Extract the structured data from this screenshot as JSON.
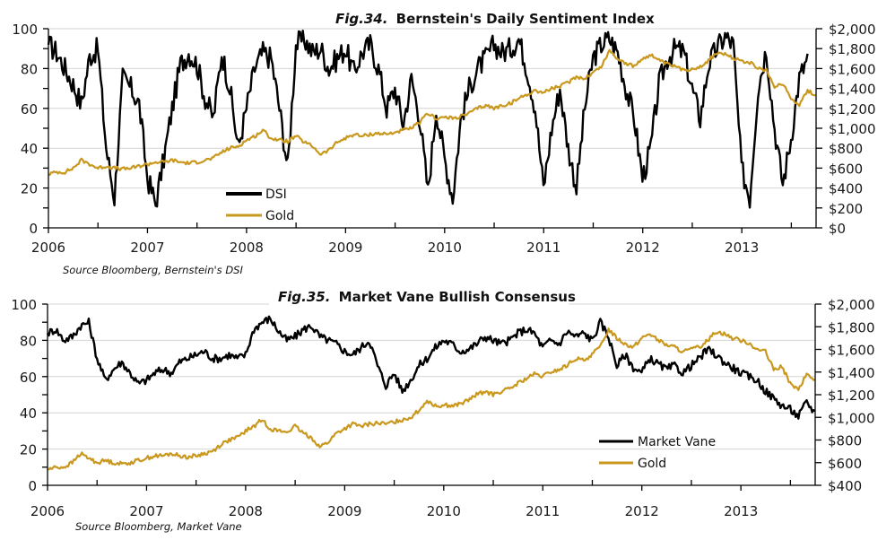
{
  "colors": {
    "sentiment": "#000000",
    "gold": "#C9981E",
    "grid": "#d4d4d4"
  },
  "chart_data": [
    {
      "type": "line",
      "title_prefix": "Fig.34.",
      "title": "Bernstein's Daily Sentiment Index",
      "source": "Source Bloomberg, Bernstein's DSI",
      "x_ticks": [
        "2006",
        "2007",
        "2008",
        "2009",
        "2010",
        "2011",
        "2012",
        "2013"
      ],
      "x_range": [
        2006.0,
        2013.75
      ],
      "y_left": {
        "range": [
          0,
          100
        ],
        "ticks": [
          0,
          20,
          40,
          60,
          80,
          100
        ],
        "labels": [
          "0",
          "20",
          "40",
          "60",
          "80",
          "100"
        ]
      },
      "y_right": {
        "range": [
          0,
          2000
        ],
        "ticks": [
          0,
          200,
          400,
          600,
          800,
          1000,
          1200,
          1400,
          1600,
          1800,
          2000
        ],
        "labels": [
          "$0",
          "$200",
          "$400",
          "$600",
          "$800",
          "$1,000",
          "$1,200",
          "$1,400",
          "$1,600",
          "$1,800",
          "$2,000"
        ]
      },
      "grid": true,
      "legend": {
        "position": "bottom-left-center",
        "entries": [
          "DSI",
          "Gold"
        ]
      },
      "series": [
        {
          "name": "DSI",
          "axis": "left",
          "color": "#000000",
          "x_start": 2006.0,
          "x_step": 0.0833,
          "values": [
            92,
            88,
            80,
            72,
            62,
            86,
            90,
            40,
            15,
            75,
            70,
            62,
            25,
            12,
            35,
            60,
            82,
            88,
            82,
            65,
            55,
            88,
            70,
            40,
            60,
            80,
            88,
            85,
            60,
            30,
            92,
            95,
            88,
            90,
            80,
            85,
            90,
            78,
            88,
            92,
            80,
            60,
            70,
            52,
            75,
            55,
            18,
            60,
            35,
            15,
            55,
            70,
            80,
            85,
            92,
            88,
            90,
            95,
            80,
            60,
            20,
            50,
            70,
            40,
            20,
            60,
            85,
            92,
            95,
            88,
            70,
            55,
            25,
            40,
            72,
            85,
            90,
            88,
            70,
            55,
            82,
            90,
            96,
            92,
            30,
            15,
            70,
            90,
            50,
            22,
            45,
            75,
            85
          ],
          "note": "approximate monthly readings"
        },
        {
          "name": "Gold",
          "axis": "right",
          "color": "#C9981E",
          "x_start": 2006.0,
          "x_step": 0.0833,
          "values": [
            540,
            560,
            560,
            600,
            680,
            640,
            600,
            620,
            600,
            590,
            600,
            620,
            640,
            660,
            660,
            680,
            660,
            650,
            660,
            680,
            700,
            760,
            800,
            820,
            880,
            920,
            980,
            900,
            880,
            870,
            920,
            860,
            820,
            740,
            780,
            860,
            900,
            940,
            920,
            940,
            950,
            940,
            960,
            980,
            1000,
            1060,
            1150,
            1100,
            1110,
            1100,
            1120,
            1150,
            1200,
            1230,
            1200,
            1230,
            1250,
            1300,
            1340,
            1380,
            1360,
            1400,
            1420,
            1460,
            1520,
            1500,
            1560,
            1620,
            1780,
            1700,
            1650,
            1620,
            1700,
            1740,
            1680,
            1640,
            1620,
            1580,
            1600,
            1620,
            1680,
            1760,
            1740,
            1700,
            1680,
            1660,
            1600,
            1580,
            1420,
            1450,
            1300,
            1240,
            1380,
            1330
          ]
        }
      ]
    },
    {
      "type": "line",
      "title_prefix": "Fig.35.",
      "title": "Market Vane Bullish Consensus",
      "source": "Source Bloomberg, Market Vane",
      "x_ticks": [
        "2006",
        "2007",
        "2008",
        "2009",
        "2010",
        "2011",
        "2012",
        "2013"
      ],
      "x_range": [
        2006.0,
        2013.75
      ],
      "y_left": {
        "range": [
          0,
          100
        ],
        "ticks": [
          0,
          20,
          40,
          60,
          80,
          100
        ],
        "labels": [
          "0",
          "20",
          "40",
          "60",
          "80",
          "100"
        ]
      },
      "y_right": {
        "range": [
          400,
          2000
        ],
        "ticks": [
          400,
          600,
          800,
          1000,
          1200,
          1400,
          1600,
          1800,
          2000
        ],
        "labels": [
          "$400",
          "$600",
          "$800",
          "$1,000",
          "$1,200",
          "$1,400",
          "$1,600",
          "$1,800",
          "$2,000"
        ]
      },
      "grid": true,
      "legend": {
        "position": "bottom-right",
        "entries": [
          "Market Vane",
          "Gold"
        ]
      },
      "series": [
        {
          "name": "Market Vane",
          "axis": "left",
          "color": "#000000",
          "x_start": 2006.0,
          "x_step": 0.0833,
          "values": [
            84,
            86,
            80,
            82,
            88,
            90,
            70,
            58,
            64,
            68,
            62,
            56,
            58,
            62,
            64,
            62,
            68,
            70,
            72,
            74,
            70,
            70,
            72,
            70,
            72,
            86,
            90,
            92,
            85,
            80,
            82,
            86,
            88,
            82,
            80,
            78,
            74,
            72,
            76,
            80,
            66,
            55,
            62,
            52,
            58,
            66,
            70,
            76,
            80,
            78,
            74,
            75,
            78,
            82,
            80,
            78,
            80,
            84,
            86,
            84,
            76,
            80,
            78,
            85,
            82,
            84,
            80,
            90,
            82,
            66,
            72,
            65,
            62,
            70,
            67,
            64,
            66,
            62,
            66,
            70,
            75,
            72,
            68,
            65,
            62,
            60,
            58,
            52,
            48,
            44,
            42,
            38,
            46,
            40
          ],
          "note": "approximate monthly readings"
        },
        {
          "name": "Gold",
          "axis": "right",
          "color": "#C9981E",
          "x_start": 2006.0,
          "x_step": 0.0833,
          "values": [
            540,
            560,
            560,
            600,
            680,
            640,
            600,
            620,
            600,
            590,
            600,
            620,
            640,
            660,
            660,
            680,
            660,
            650,
            660,
            680,
            700,
            760,
            800,
            820,
            880,
            920,
            980,
            900,
            880,
            870,
            920,
            860,
            820,
            740,
            780,
            860,
            900,
            940,
            920,
            940,
            950,
            940,
            960,
            980,
            1000,
            1060,
            1150,
            1100,
            1110,
            1100,
            1120,
            1150,
            1200,
            1230,
            1200,
            1230,
            1250,
            1300,
            1340,
            1380,
            1360,
            1400,
            1420,
            1460,
            1520,
            1500,
            1560,
            1620,
            1780,
            1700,
            1650,
            1620,
            1700,
            1740,
            1680,
            1640,
            1620,
            1580,
            1600,
            1620,
            1680,
            1760,
            1740,
            1700,
            1680,
            1660,
            1600,
            1580,
            1420,
            1450,
            1300,
            1240,
            1380,
            1330
          ]
        }
      ]
    }
  ]
}
